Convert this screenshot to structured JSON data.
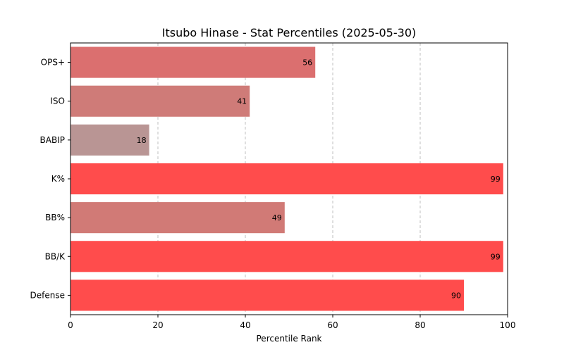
{
  "chart_data": {
    "type": "bar",
    "orientation": "horizontal",
    "title": "Itsubo Hinase - Stat Percentiles (2025-05-30)",
    "xlabel": "Percentile Rank",
    "ylabel": "",
    "xlim": [
      0,
      100
    ],
    "xticks": [
      0,
      20,
      40,
      60,
      80,
      100
    ],
    "grid": "x-dashed",
    "categories": [
      "OPS+",
      "ISO",
      "BABIP",
      "K%",
      "BB%",
      "BB/K",
      "Defense"
    ],
    "values": [
      56,
      41,
      18,
      99,
      49,
      99,
      90
    ],
    "colors": [
      "#db6f6f",
      "#cf7b78",
      "#b99594",
      "#ff4c4c",
      "#d17a76",
      "#ff4c4c",
      "#ff4c4c"
    ]
  }
}
